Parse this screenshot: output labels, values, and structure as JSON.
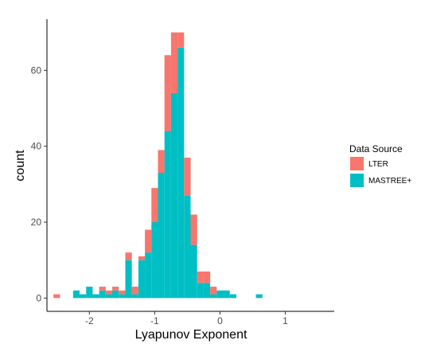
{
  "chart_data": {
    "type": "bar",
    "subtype": "stacked-histogram",
    "title": "",
    "xlabel": "Lyapunov Exponent",
    "ylabel": "count",
    "xlim": [
      -2.65,
      1.75
    ],
    "ylim": [
      -3.5,
      73.5
    ],
    "xticks": [
      -2,
      -1,
      0,
      1
    ],
    "xtick_labels": [
      "-2",
      "-1",
      "0",
      "1"
    ],
    "yticks": [
      0,
      20,
      40,
      60
    ],
    "ytick_labels": [
      "0",
      "20",
      "40",
      "60"
    ],
    "grid": false,
    "bin_width": 0.1,
    "legend": {
      "title": "Data Source",
      "position": "right"
    },
    "bins": [
      {
        "x0": -2.55,
        "x1": -2.45,
        "mastree": 0,
        "lter": 1
      },
      {
        "x0": -2.25,
        "x1": -2.15,
        "mastree": 2,
        "lter": 0
      },
      {
        "x0": -2.15,
        "x1": -2.05,
        "mastree": 1,
        "lter": 0
      },
      {
        "x0": -2.05,
        "x1": -1.95,
        "mastree": 3,
        "lter": 0
      },
      {
        "x0": -1.95,
        "x1": -1.85,
        "mastree": 1,
        "lter": 0
      },
      {
        "x0": -1.85,
        "x1": -1.75,
        "mastree": 2,
        "lter": 1
      },
      {
        "x0": -1.75,
        "x1": -1.65,
        "mastree": 1,
        "lter": 1
      },
      {
        "x0": -1.65,
        "x1": -1.55,
        "mastree": 2,
        "lter": 1
      },
      {
        "x0": -1.55,
        "x1": -1.45,
        "mastree": 1,
        "lter": 1
      },
      {
        "x0": -1.45,
        "x1": -1.35,
        "mastree": 10,
        "lter": 2
      },
      {
        "x0": -1.35,
        "x1": -1.25,
        "mastree": 1,
        "lter": 2
      },
      {
        "x0": -1.25,
        "x1": -1.15,
        "mastree": 10,
        "lter": 1
      },
      {
        "x0": -1.15,
        "x1": -1.05,
        "mastree": 12,
        "lter": 6
      },
      {
        "x0": -1.05,
        "x1": -0.95,
        "mastree": 20,
        "lter": 9
      },
      {
        "x0": -0.95,
        "x1": -0.85,
        "mastree": 33,
        "lter": 6
      },
      {
        "x0": -0.85,
        "x1": -0.75,
        "mastree": 44,
        "lter": 20
      },
      {
        "x0": -0.75,
        "x1": -0.65,
        "mastree": 54,
        "lter": 16
      },
      {
        "x0": -0.65,
        "x1": -0.55,
        "mastree": 66,
        "lter": 4
      },
      {
        "x0": -0.55,
        "x1": -0.45,
        "mastree": 27,
        "lter": 10
      },
      {
        "x0": -0.45,
        "x1": -0.35,
        "mastree": 14,
        "lter": 8
      },
      {
        "x0": -0.35,
        "x1": -0.25,
        "mastree": 4,
        "lter": 3
      },
      {
        "x0": -0.25,
        "x1": -0.15,
        "mastree": 4,
        "lter": 3
      },
      {
        "x0": -0.15,
        "x1": -0.05,
        "mastree": 1,
        "lter": 2
      },
      {
        "x0": -0.05,
        "x1": 0.05,
        "mastree": 2,
        "lter": 0
      },
      {
        "x0": 0.05,
        "x1": 0.15,
        "mastree": 2,
        "lter": 0
      },
      {
        "x0": 0.15,
        "x1": 0.25,
        "mastree": 1,
        "lter": 0
      },
      {
        "x0": 0.55,
        "x1": 0.65,
        "mastree": 1,
        "lter": 0
      }
    ],
    "series": [
      {
        "name": "LTER",
        "color": "#F8766D"
      },
      {
        "name": "MASTREE+",
        "color": "#00BFC4"
      }
    ]
  }
}
